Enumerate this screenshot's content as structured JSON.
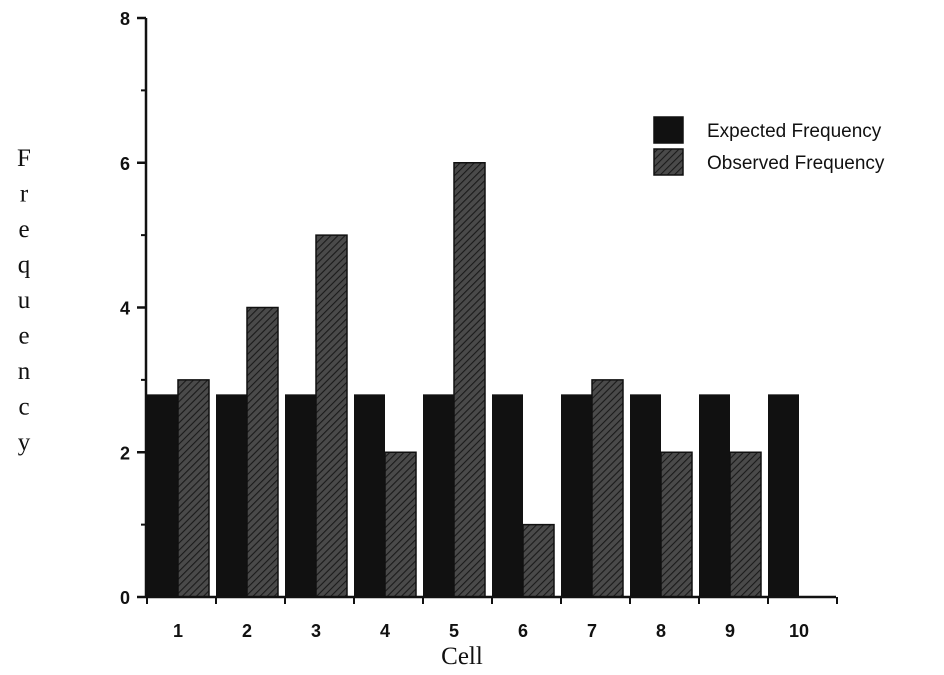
{
  "chart_data": {
    "type": "bar",
    "title": "",
    "xlabel": "Cell",
    "ylabel": "Frequency",
    "categories": [
      "1",
      "2",
      "3",
      "4",
      "5",
      "6",
      "7",
      "8",
      "9",
      "10"
    ],
    "series": [
      {
        "name": "Expected Frequency",
        "values": [
          2.8,
          2.8,
          2.8,
          2.8,
          2.8,
          2.8,
          2.8,
          2.8,
          2.8,
          2.8
        ],
        "color": "#111111",
        "pattern": "solid"
      },
      {
        "name": "Observed Frequency",
        "values": [
          3,
          4,
          5,
          2,
          6,
          1,
          3,
          2,
          2,
          0
        ],
        "color": "#3a3a3a",
        "pattern": "hatched"
      }
    ],
    "ylim": [
      0,
      8
    ],
    "yticks": [
      "0",
      "2",
      "4",
      "6",
      "8"
    ],
    "grid": false,
    "legend": "top-right"
  }
}
